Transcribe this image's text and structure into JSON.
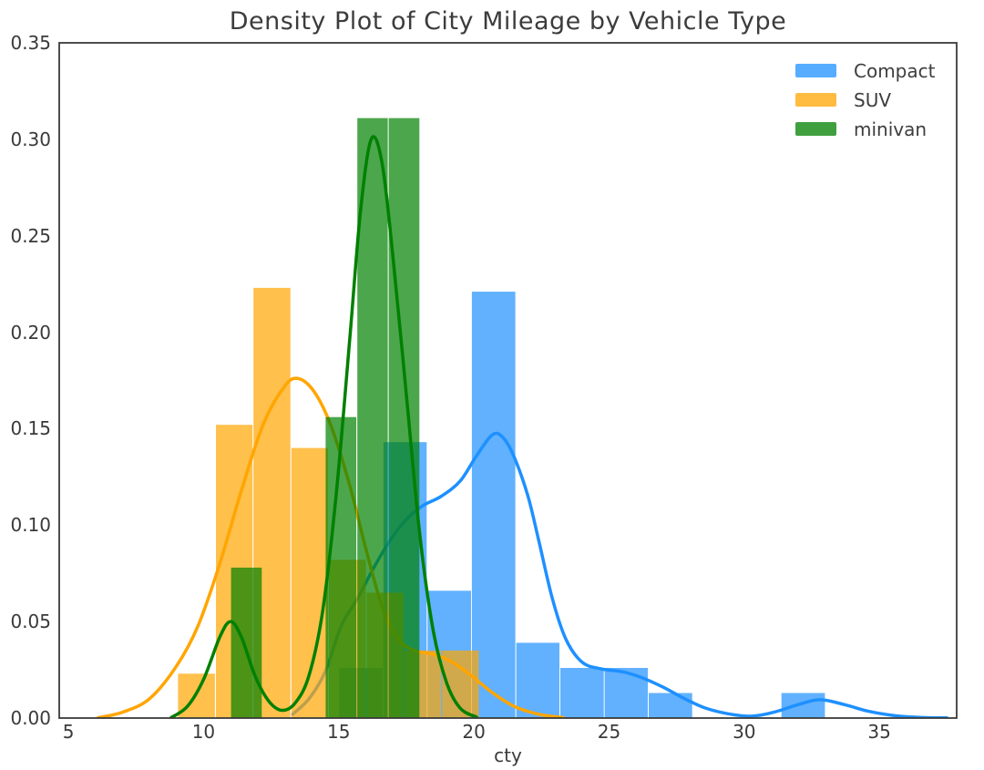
{
  "chart_data": {
    "type": "histogram+kde",
    "title": "Density Plot of City Mileage by Vehicle Type",
    "xlabel": "cty",
    "xlim": [
      4.66,
      37.86
    ],
    "ylim": [
      0,
      0.35
    ],
    "xticks": [
      "5",
      "10",
      "15",
      "20",
      "25",
      "30",
      "35"
    ],
    "yticks": [
      "0.00",
      "0.05",
      "0.10",
      "0.15",
      "0.20",
      "0.25",
      "0.30",
      "0.35"
    ],
    "grid": false,
    "legend": {
      "position": "upper right",
      "entries": [
        {
          "label": "Compact",
          "color": "#1E90FF"
        },
        {
          "label": "SUV",
          "color": "#FFA500"
        },
        {
          "label": "minivan",
          "color": "#008000"
        }
      ]
    },
    "series": [
      {
        "name": "Compact",
        "color": "#1E90FF",
        "bar_alpha": 0.7,
        "bin_edges": [
          15.0,
          16.64,
          18.27,
          19.91,
          21.55,
          23.18,
          24.82,
          26.45,
          28.09,
          29.73,
          31.36,
          33.0
        ],
        "bin_heights": [
          0.026,
          0.143,
          0.066,
          0.221,
          0.039,
          0.026,
          0.026,
          0.013,
          0,
          0,
          0.013
        ],
        "kde": [
          [
            13.3,
            0.002
          ],
          [
            13.9,
            0.01
          ],
          [
            14.5,
            0.024
          ],
          [
            15.1,
            0.048
          ],
          [
            15.7,
            0.062
          ],
          [
            16.3,
            0.078
          ],
          [
            16.9,
            0.092
          ],
          [
            17.5,
            0.103
          ],
          [
            18.1,
            0.11
          ],
          [
            18.8,
            0.115
          ],
          [
            19.5,
            0.123
          ],
          [
            20.1,
            0.136
          ],
          [
            20.7,
            0.147
          ],
          [
            21.1,
            0.145
          ],
          [
            21.5,
            0.135
          ],
          [
            22.0,
            0.115
          ],
          [
            22.4,
            0.092
          ],
          [
            22.9,
            0.062
          ],
          [
            23.4,
            0.041
          ],
          [
            24.0,
            0.029
          ],
          [
            24.7,
            0.0255
          ],
          [
            25.5,
            0.024
          ],
          [
            26.2,
            0.021
          ],
          [
            27.0,
            0.016
          ],
          [
            27.8,
            0.01
          ],
          [
            28.6,
            0.005
          ],
          [
            29.5,
            0.002
          ],
          [
            30.3,
            0.001
          ],
          [
            31.1,
            0.003
          ],
          [
            32.0,
            0.007
          ],
          [
            32.8,
            0.0095
          ],
          [
            33.7,
            0.007
          ],
          [
            34.6,
            0.0035
          ],
          [
            35.6,
            0.0012
          ],
          [
            36.6,
            0.0003
          ],
          [
            37.5,
            0.0001
          ]
        ]
      },
      {
        "name": "SUV",
        "color": "#FFA500",
        "bar_alpha": 0.7,
        "bin_edges": [
          9.04,
          10.44,
          11.83,
          13.23,
          14.62,
          16.02,
          17.41,
          18.81,
          20.2
        ],
        "bin_heights": [
          0.023,
          0.152,
          0.223,
          0.14,
          0.082,
          0.065,
          0.035,
          0.035
        ],
        "kde": [
          [
            6.1,
            0.0002
          ],
          [
            7.0,
            0.003
          ],
          [
            8.0,
            0.01
          ],
          [
            9.0,
            0.027
          ],
          [
            9.8,
            0.048
          ],
          [
            10.6,
            0.08
          ],
          [
            11.4,
            0.118
          ],
          [
            12.2,
            0.152
          ],
          [
            13.0,
            0.172
          ],
          [
            13.5,
            0.176
          ],
          [
            14.1,
            0.169
          ],
          [
            14.7,
            0.152
          ],
          [
            15.4,
            0.121
          ],
          [
            16.0,
            0.088
          ],
          [
            16.6,
            0.058
          ],
          [
            17.2,
            0.041
          ],
          [
            17.8,
            0.035
          ],
          [
            18.5,
            0.033
          ],
          [
            19.2,
            0.029
          ],
          [
            19.9,
            0.022
          ],
          [
            20.7,
            0.013
          ],
          [
            21.5,
            0.006
          ],
          [
            22.4,
            0.002
          ],
          [
            23.3,
            0.0003
          ]
        ]
      },
      {
        "name": "minivan",
        "color": "#008000",
        "bar_alpha": 0.7,
        "bin_edges": [
          11.0,
          12.17,
          13.33,
          14.5,
          15.67,
          16.83,
          18.0
        ],
        "bin_heights": [
          0.078,
          0,
          0,
          0.156,
          0.311,
          0.311
        ],
        "kde": [
          [
            8.8,
            0.0002
          ],
          [
            9.4,
            0.006
          ],
          [
            10.0,
            0.02
          ],
          [
            10.6,
            0.042
          ],
          [
            11.0,
            0.05
          ],
          [
            11.4,
            0.042
          ],
          [
            11.9,
            0.022
          ],
          [
            12.4,
            0.009
          ],
          [
            12.9,
            0.004
          ],
          [
            13.4,
            0.008
          ],
          [
            13.9,
            0.022
          ],
          [
            14.4,
            0.055
          ],
          [
            14.9,
            0.115
          ],
          [
            15.4,
            0.195
          ],
          [
            15.8,
            0.262
          ],
          [
            16.2,
            0.3
          ],
          [
            16.6,
            0.288
          ],
          [
            17.0,
            0.24
          ],
          [
            17.5,
            0.168
          ],
          [
            18.0,
            0.095
          ],
          [
            18.5,
            0.045
          ],
          [
            19.0,
            0.018
          ],
          [
            19.5,
            0.005
          ],
          [
            20.1,
            0.0005
          ]
        ]
      }
    ]
  }
}
